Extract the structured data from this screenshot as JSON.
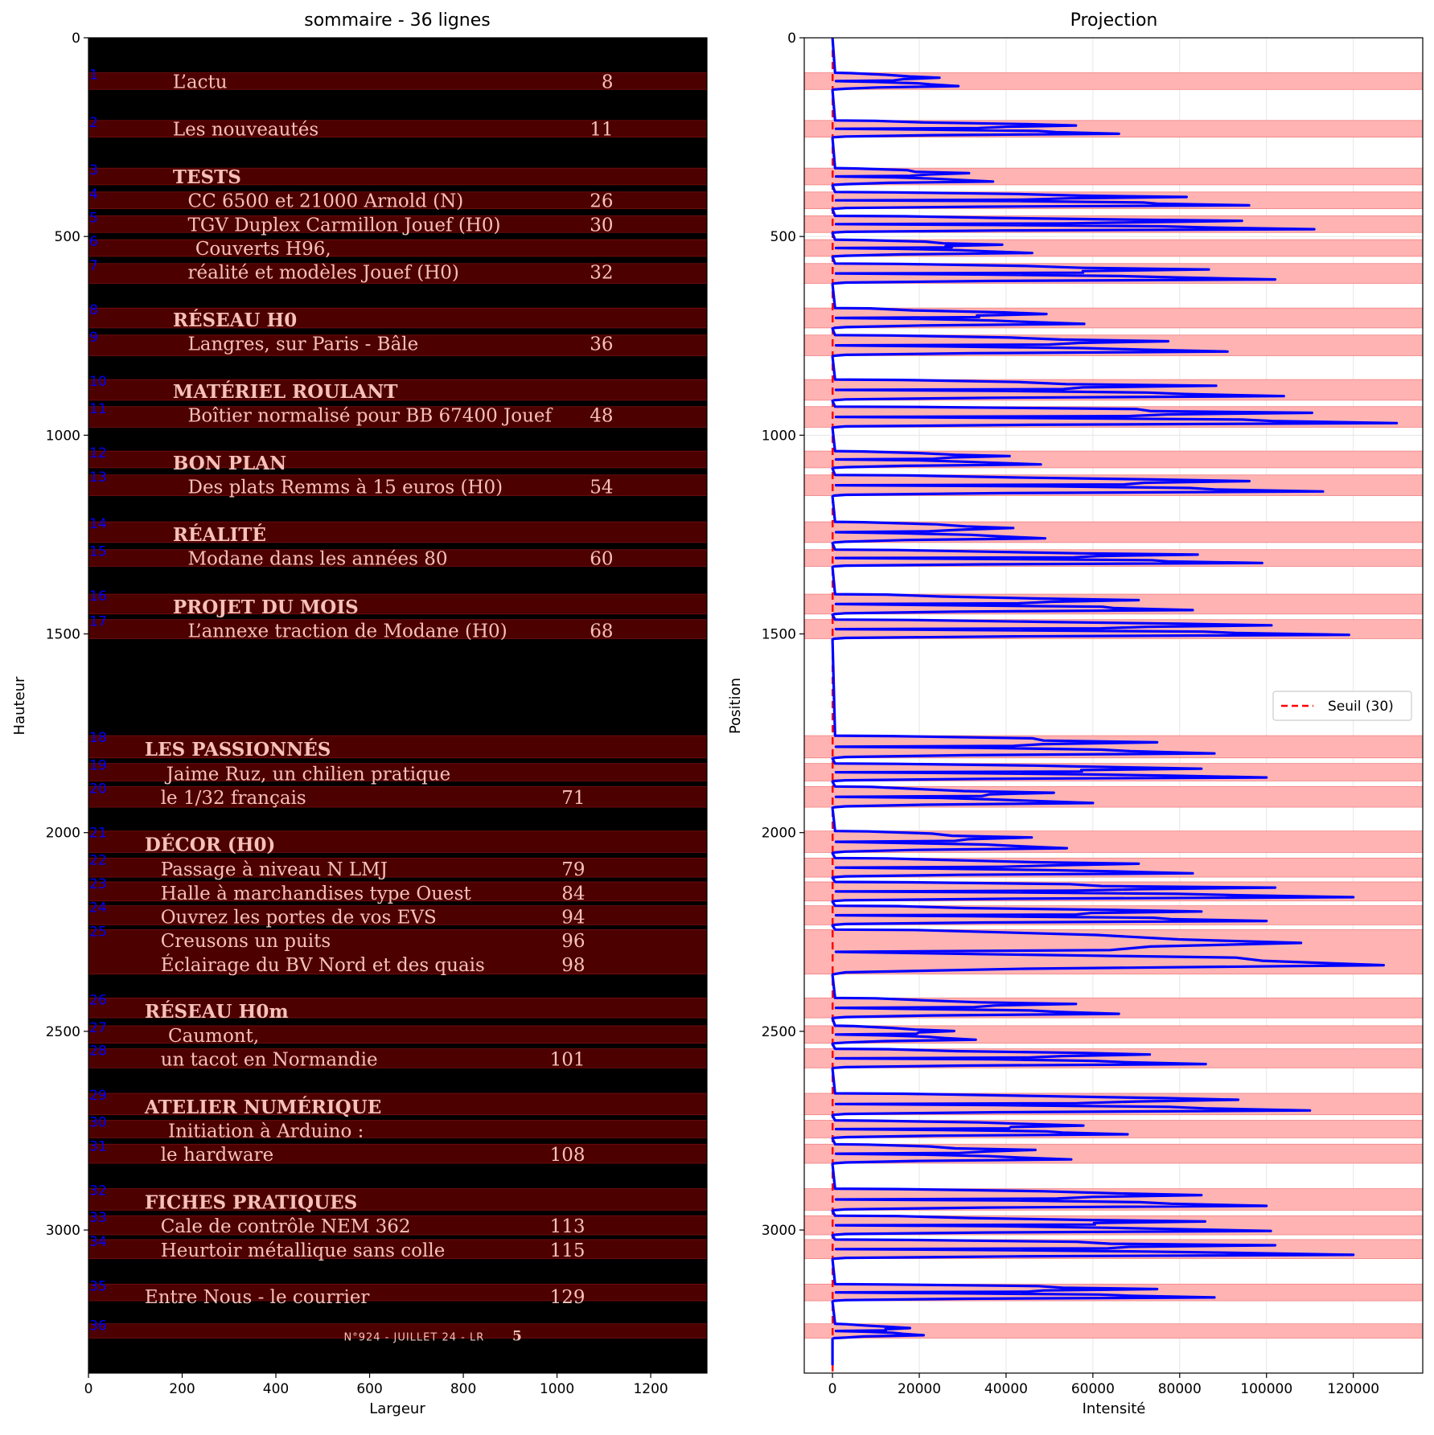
{
  "chart_data": [
    {
      "type": "table",
      "title": "sommaire - 36 lignes",
      "xlabel": "Largeur",
      "ylabel": "Hauteur",
      "xlim": [
        0,
        1320
      ],
      "ylim": [
        3360,
        0
      ],
      "xticks": [
        0,
        200,
        400,
        600,
        800,
        1000,
        1200
      ],
      "yticks": [
        0,
        500,
        1000,
        1500,
        2000,
        2500,
        3000
      ],
      "background": "#000000",
      "band_color": "#4d0000",
      "text_color": "#f6c1b8",
      "number_color": "#0000ff",
      "bands": [
        {
          "n": "1",
          "y0": 88,
          "y1": 130
        },
        {
          "n": "2",
          "y0": 208,
          "y1": 250
        },
        {
          "n": "3",
          "y0": 328,
          "y1": 370
        },
        {
          "n": "4",
          "y0": 388,
          "y1": 430
        },
        {
          "n": "5",
          "y0": 448,
          "y1": 490
        },
        {
          "n": "6",
          "y0": 508,
          "y1": 550
        },
        {
          "n": "7",
          "y0": 568,
          "y1": 618
        },
        {
          "n": "8",
          "y0": 680,
          "y1": 730
        },
        {
          "n": "9",
          "y0": 748,
          "y1": 800
        },
        {
          "n": "10",
          "y0": 860,
          "y1": 912
        },
        {
          "n": "11",
          "y0": 928,
          "y1": 980
        },
        {
          "n": "12",
          "y0": 1040,
          "y1": 1082
        },
        {
          "n": "13",
          "y0": 1100,
          "y1": 1152
        },
        {
          "n": "14",
          "y0": 1218,
          "y1": 1270
        },
        {
          "n": "15",
          "y0": 1288,
          "y1": 1330
        },
        {
          "n": "16",
          "y0": 1400,
          "y1": 1450
        },
        {
          "n": "17",
          "y0": 1464,
          "y1": 1512
        },
        {
          "n": "18",
          "y0": 1756,
          "y1": 1812
        },
        {
          "n": "19",
          "y0": 1826,
          "y1": 1870
        },
        {
          "n": "20",
          "y0": 1884,
          "y1": 1936
        },
        {
          "n": "21",
          "y0": 1996,
          "y1": 2050
        },
        {
          "n": "22",
          "y0": 2064,
          "y1": 2112
        },
        {
          "n": "23",
          "y0": 2124,
          "y1": 2172
        },
        {
          "n": "24",
          "y0": 2184,
          "y1": 2232
        },
        {
          "n": "25",
          "y0": 2244,
          "y1": 2356
        },
        {
          "n": "26",
          "y0": 2416,
          "y1": 2466
        },
        {
          "n": "27",
          "y0": 2486,
          "y1": 2530
        },
        {
          "n": "28",
          "y0": 2544,
          "y1": 2592
        },
        {
          "n": "29",
          "y0": 2656,
          "y1": 2710
        },
        {
          "n": "30",
          "y0": 2724,
          "y1": 2768
        },
        {
          "n": "31",
          "y0": 2784,
          "y1": 2832
        },
        {
          "n": "32",
          "y0": 2896,
          "y1": 2950
        },
        {
          "n": "33",
          "y0": 2964,
          "y1": 3012
        },
        {
          "n": "34",
          "y0": 3024,
          "y1": 3072
        },
        {
          "n": "35",
          "y0": 3136,
          "y1": 3178
        },
        {
          "n": "36",
          "y0": 3236,
          "y1": 3272
        }
      ],
      "text_rows": [
        {
          "text": "L’actu",
          "page": "8",
          "x": 180,
          "pagex": 1120,
          "y": 110,
          "style": "normal"
        },
        {
          "text": "Les nouveautés",
          "page": "11",
          "x": 180,
          "pagex": 1120,
          "y": 230,
          "style": "normal"
        },
        {
          "text": "TESTS",
          "page": "",
          "x": 180,
          "pagex": 1120,
          "y": 350,
          "style": "bold"
        },
        {
          "text": "CC 6500 et 21000 Arnold (N)",
          "page": "26",
          "x": 212,
          "pagex": 1120,
          "y": 410,
          "style": "normal"
        },
        {
          "text": "TGV Duplex Carmillon Jouef (H0)",
          "page": "30",
          "x": 212,
          "pagex": 1120,
          "y": 470,
          "style": "normal"
        },
        {
          "text": "Couverts H96,",
          "page": "",
          "x": 228,
          "pagex": 1120,
          "y": 530,
          "style": "normal"
        },
        {
          "text": "réalité et modèles Jouef (H0)",
          "page": "32",
          "x": 212,
          "pagex": 1120,
          "y": 590,
          "style": "normal"
        },
        {
          "text": "RÉSEAU H0",
          "page": "",
          "x": 180,
          "pagex": 1120,
          "y": 710,
          "style": "bold"
        },
        {
          "text": "Langres, sur Paris - Bâle",
          "page": "36",
          "x": 212,
          "pagex": 1120,
          "y": 770,
          "style": "normal"
        },
        {
          "text": "MATÉRIEL ROULANT",
          "page": "",
          "x": 180,
          "pagex": 1120,
          "y": 890,
          "style": "bold"
        },
        {
          "text": "Boîtier normalisé pour BB 67400 Jouef",
          "page": "48",
          "x": 212,
          "pagex": 1120,
          "y": 950,
          "style": "normal"
        },
        {
          "text": "BON PLAN",
          "page": "",
          "x": 180,
          "pagex": 1120,
          "y": 1070,
          "style": "bold"
        },
        {
          "text": "Des plats Remms à 15 euros (H0)",
          "page": "54",
          "x": 212,
          "pagex": 1120,
          "y": 1130,
          "style": "normal"
        },
        {
          "text": "RÉALITÉ",
          "page": "",
          "x": 180,
          "pagex": 1120,
          "y": 1250,
          "style": "bold"
        },
        {
          "text": "Modane dans les années 80",
          "page": "60",
          "x": 212,
          "pagex": 1120,
          "y": 1310,
          "style": "normal"
        },
        {
          "text": "PROJET DU MOIS",
          "page": "",
          "x": 180,
          "pagex": 1120,
          "y": 1432,
          "style": "bold"
        },
        {
          "text": "L’annexe traction de Modane (H0)",
          "page": "68",
          "x": 212,
          "pagex": 1120,
          "y": 1492,
          "style": "normal"
        },
        {
          "text": "LES PASSIONNÉS",
          "page": "",
          "x": 120,
          "pagex": 1060,
          "y": 1790,
          "style": "bold"
        },
        {
          "text": "Jaime Ruz, un chilien pratique",
          "page": "",
          "x": 166,
          "pagex": 1060,
          "y": 1852,
          "style": "normal"
        },
        {
          "text": "le 1/32 français",
          "page": "71",
          "x": 154,
          "pagex": 1060,
          "y": 1912,
          "style": "normal"
        },
        {
          "text": "DÉCOR (H0)",
          "page": "",
          "x": 120,
          "pagex": 1060,
          "y": 2030,
          "style": "bold"
        },
        {
          "text": "Passage à niveau N LMJ",
          "page": "79",
          "x": 154,
          "pagex": 1060,
          "y": 2092,
          "style": "normal"
        },
        {
          "text": "Halle à marchandises type Ouest",
          "page": "84",
          "x": 154,
          "pagex": 1060,
          "y": 2152,
          "style": "normal"
        },
        {
          "text": "Ouvrez les portes de vos EVS",
          "page": "94",
          "x": 154,
          "pagex": 1060,
          "y": 2212,
          "style": "normal"
        },
        {
          "text": "Creusons un puits",
          "page": "96",
          "x": 154,
          "pagex": 1060,
          "y": 2272,
          "style": "normal"
        },
        {
          "text": "Éclairage du BV Nord et des quais",
          "page": "98",
          "x": 154,
          "pagex": 1060,
          "y": 2332,
          "style": "normal"
        },
        {
          "text": "RÉSEAU H0m",
          "page": "",
          "x": 120,
          "pagex": 1060,
          "y": 2450,
          "style": "bold"
        },
        {
          "text": "Caumont,",
          "page": "",
          "x": 170,
          "pagex": 1060,
          "y": 2510,
          "style": "normal"
        },
        {
          "text": "un tacot en Normandie",
          "page": "101",
          "x": 154,
          "pagex": 1060,
          "y": 2570,
          "style": "normal"
        },
        {
          "text": "ATELIER NUMÉRIQUE",
          "page": "",
          "x": 120,
          "pagex": 1060,
          "y": 2690,
          "style": "bold"
        },
        {
          "text": "Initiation à Arduino :",
          "page": "",
          "x": 170,
          "pagex": 1060,
          "y": 2750,
          "style": "normal"
        },
        {
          "text": "le hardware",
          "page": "108",
          "x": 154,
          "pagex": 1060,
          "y": 2810,
          "style": "normal"
        },
        {
          "text": "FICHES PRATIQUES",
          "page": "",
          "x": 120,
          "pagex": 1060,
          "y": 2930,
          "style": "bold"
        },
        {
          "text": "Cale de contrôle NEM 362",
          "page": "113",
          "x": 154,
          "pagex": 1060,
          "y": 2990,
          "style": "normal"
        },
        {
          "text": "Heurtoir métallique sans colle",
          "page": "115",
          "x": 154,
          "pagex": 1060,
          "y": 3050,
          "style": "normal"
        },
        {
          "text": "Entre Nous - le courrier",
          "page": "129",
          "x": 120,
          "pagex": 1060,
          "y": 3168,
          "style": "normal"
        },
        {
          "text": "N°924 - JUILLET 24 - LR",
          "page": "5",
          "x": 545,
          "pagex": 925,
          "y": 3262,
          "style": "small"
        }
      ]
    },
    {
      "type": "line",
      "title": "Projection",
      "xlabel": "Intensité",
      "ylabel": "Position",
      "xlim": [
        -6500,
        136000
      ],
      "ylim": [
        3360,
        0
      ],
      "xticks": [
        0,
        20000,
        40000,
        60000,
        80000,
        100000,
        120000
      ],
      "yticks": [
        0,
        500,
        1000,
        1500,
        2000,
        2500,
        3000
      ],
      "grid": true,
      "band_color": "#ffb3b3",
      "line_color": "#0000ff",
      "threshold": {
        "value": 30,
        "color": "#ff0000",
        "label": "Seuil (30)"
      },
      "legend": "center-right",
      "bands": [
        [
          88,
          130
        ],
        [
          208,
          250
        ],
        [
          328,
          370
        ],
        [
          388,
          430
        ],
        [
          448,
          490
        ],
        [
          508,
          550
        ],
        [
          568,
          618
        ],
        [
          680,
          730
        ],
        [
          748,
          800
        ],
        [
          860,
          912
        ],
        [
          928,
          980
        ],
        [
          1040,
          1082
        ],
        [
          1100,
          1152
        ],
        [
          1218,
          1270
        ],
        [
          1288,
          1330
        ],
        [
          1400,
          1450
        ],
        [
          1464,
          1512
        ],
        [
          1756,
          1812
        ],
        [
          1826,
          1870
        ],
        [
          1884,
          1936
        ],
        [
          1996,
          2050
        ],
        [
          2064,
          2112
        ],
        [
          2124,
          2172
        ],
        [
          2184,
          2232
        ],
        [
          2244,
          2356
        ],
        [
          2416,
          2466
        ],
        [
          2486,
          2530
        ],
        [
          2544,
          2592
        ],
        [
          2656,
          2710
        ],
        [
          2724,
          2768
        ],
        [
          2784,
          2832
        ],
        [
          2896,
          2950
        ],
        [
          2964,
          3012
        ],
        [
          3024,
          3072
        ],
        [
          3136,
          3178
        ],
        [
          3236,
          3272
        ]
      ],
      "peaks": [
        [
          88,
          130,
          29000
        ],
        [
          208,
          250,
          66000
        ],
        [
          328,
          370,
          37000
        ],
        [
          388,
          430,
          96000
        ],
        [
          448,
          490,
          111000
        ],
        [
          508,
          550,
          46000
        ],
        [
          568,
          618,
          102000
        ],
        [
          680,
          730,
          58000
        ],
        [
          748,
          800,
          91000
        ],
        [
          860,
          912,
          104000
        ],
        [
          928,
          980,
          130000
        ],
        [
          1040,
          1082,
          48000
        ],
        [
          1100,
          1152,
          113000
        ],
        [
          1218,
          1270,
          49000
        ],
        [
          1288,
          1330,
          99000
        ],
        [
          1400,
          1450,
          83000
        ],
        [
          1464,
          1512,
          119000
        ],
        [
          1756,
          1812,
          88000
        ],
        [
          1826,
          1870,
          100000
        ],
        [
          1884,
          1936,
          60000
        ],
        [
          1996,
          2050,
          54000
        ],
        [
          2064,
          2112,
          83000
        ],
        [
          2124,
          2172,
          120000
        ],
        [
          2184,
          2232,
          100000
        ],
        [
          2244,
          2356,
          127000
        ],
        [
          2416,
          2466,
          66000
        ],
        [
          2486,
          2530,
          33000
        ],
        [
          2544,
          2592,
          86000
        ],
        [
          2656,
          2710,
          110000
        ],
        [
          2724,
          2768,
          68000
        ],
        [
          2784,
          2832,
          55000
        ],
        [
          2896,
          2950,
          100000
        ],
        [
          2964,
          3012,
          101000
        ],
        [
          3024,
          3072,
          120000
        ],
        [
          3136,
          3178,
          88000
        ],
        [
          3236,
          3272,
          21000
        ]
      ]
    }
  ]
}
